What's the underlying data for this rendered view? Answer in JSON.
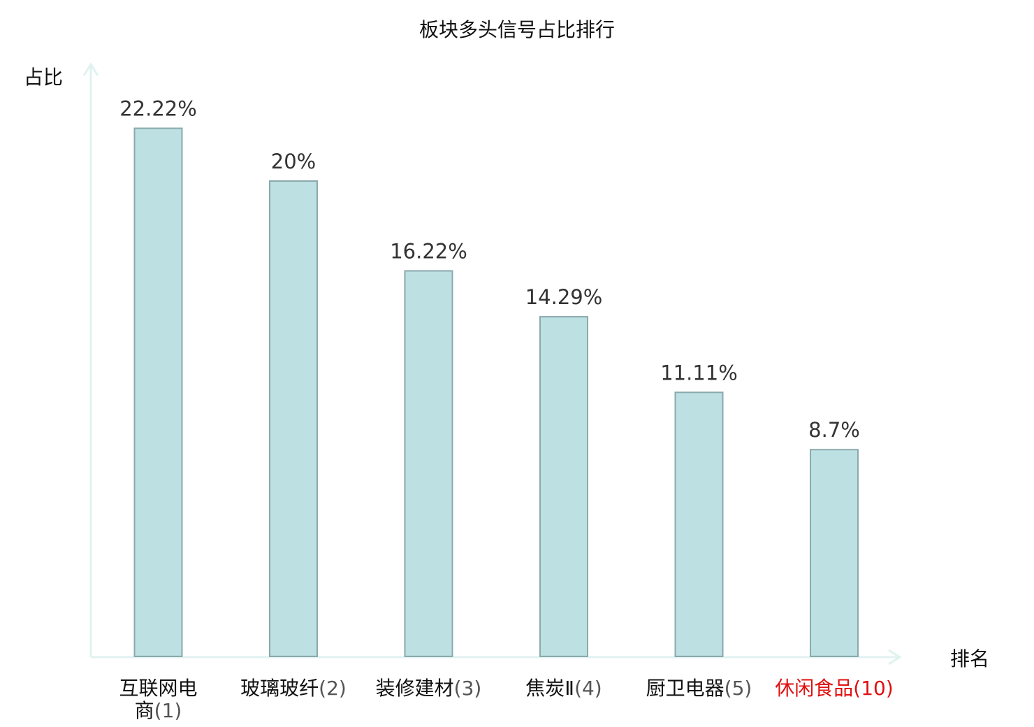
{
  "chart_data": {
    "type": "bar",
    "title": "板块多头信号占比排行",
    "xlabel": "排名",
    "ylabel": "占比",
    "ylim": [
      0,
      25
    ],
    "grid": false,
    "legend": "none",
    "categories": [
      {
        "name": "互联网电商",
        "rank": "(1)",
        "highlight": false
      },
      {
        "name": "玻璃玻纤",
        "rank": "(2)",
        "highlight": false
      },
      {
        "name": "装修建材",
        "rank": "(3)",
        "highlight": false
      },
      {
        "name": "焦炭Ⅱ",
        "rank": "(4)",
        "highlight": false
      },
      {
        "name": "厨卫电器",
        "rank": "(5)",
        "highlight": false
      },
      {
        "name": "休闲食品",
        "rank": "(10)",
        "highlight": true
      }
    ],
    "values": [
      22.22,
      20,
      16.22,
      14.29,
      11.11,
      8.7
    ],
    "value_labels": [
      "22.22%",
      "20%",
      "16.22%",
      "14.29%",
      "11.11%",
      "8.7%"
    ],
    "colors": {
      "bar_fill": "#bde0e3",
      "bar_stroke": "#8aa9ac",
      "axis": "#e0f2f0",
      "highlight_text": "#e01010"
    }
  }
}
